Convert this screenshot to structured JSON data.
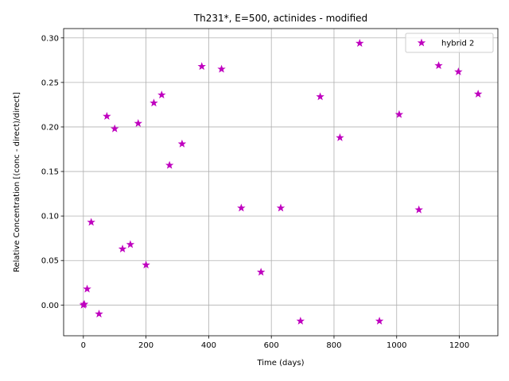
{
  "chart_data": {
    "type": "scatter",
    "title": "Th231*, E=500, actinides - modified",
    "xlabel": "Time (days)",
    "ylabel": "Relative Concentration [(conc - direct)/direct]",
    "xlim": [
      -63,
      1323
    ],
    "ylim": [
      -0.0345,
      0.3105
    ],
    "xticks": [
      0,
      200,
      400,
      600,
      800,
      1000,
      1200
    ],
    "xtick_labels": [
      "0",
      "200",
      "400",
      "600",
      "800",
      "1000",
      "1200"
    ],
    "yticks": [
      0.0,
      0.05,
      0.1,
      0.15,
      0.2,
      0.25,
      0.3
    ],
    "ytick_labels": [
      "0.00",
      "0.05",
      "0.10",
      "0.15",
      "0.20",
      "0.25",
      "0.30"
    ],
    "grid": true,
    "legend_position": "top-right",
    "marker": "star",
    "series": [
      {
        "name": "hybrid 2",
        "color": "#bf00bf",
        "x": [
          0,
          3,
          12,
          25,
          50,
          75,
          100,
          125,
          150,
          175,
          200,
          225,
          250,
          275,
          315,
          378,
          441,
          504,
          567,
          630,
          693,
          756,
          819,
          882,
          945,
          1008,
          1071,
          1134,
          1197,
          1260
        ],
        "y": [
          0.0,
          0.001,
          0.018,
          0.093,
          -0.01,
          0.212,
          0.198,
          0.063,
          0.068,
          0.204,
          0.045,
          0.227,
          0.236,
          0.157,
          0.181,
          0.268,
          0.265,
          0.109,
          0.037,
          0.109,
          -0.018,
          0.234,
          0.188,
          0.294,
          -0.018,
          0.214,
          0.107,
          0.269,
          0.262,
          0.237
        ]
      }
    ]
  }
}
